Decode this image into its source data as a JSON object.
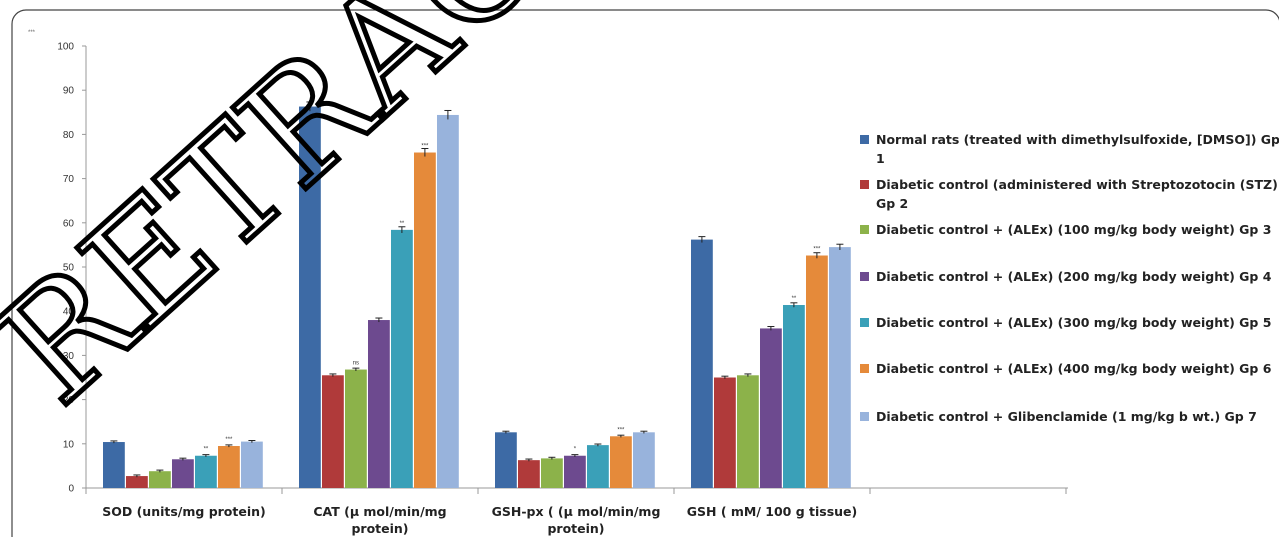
{
  "corner_mark": "***",
  "watermark": "RETRACTED",
  "colors": [
    "#3d6aa5",
    "#b03a3a",
    "#8cb24a",
    "#6d4a8f",
    "#3aa0b8",
    "#e58a3a",
    "#98b3dc"
  ],
  "chart_data": {
    "type": "bar",
    "title": "",
    "xlabel": "",
    "ylabel": "",
    "ylim": [
      0,
      100
    ],
    "yticks": [
      0,
      10,
      20,
      30,
      40,
      50,
      60,
      70,
      80,
      90,
      100
    ],
    "grid": false,
    "legend_position": "right",
    "categories": [
      [
        "SOD (units/mg  protein)"
      ],
      [
        "CAT (µ mol/min/mg",
        "protein)"
      ],
      [
        "GSH-px ( (µ mol/min/mg",
        "protein)"
      ],
      [
        "GSH ( mM/ 100 g tissue)"
      ]
    ],
    "series": [
      {
        "name": [
          "Normal rats (treated with dimethylsulfoxide, [DMSO]) Gp",
          "1"
        ],
        "values": [
          10.4,
          86.3,
          12.6,
          56.2
        ]
      },
      {
        "name": [
          "Diabetic control (administered with Streptozotocin (STZ)",
          "Gp 2"
        ],
        "values": [
          2.7,
          25.5,
          6.3,
          25.0
        ]
      },
      {
        "name": [
          "Diabetic control + (ALEx) (100 mg/kg body weight) Gp 3"
        ],
        "values": [
          3.8,
          26.8,
          6.7,
          25.5
        ]
      },
      {
        "name": [
          "Diabetic control + (ALEx) (200 mg/kg body weight) Gp 4"
        ],
        "values": [
          6.5,
          38.0,
          7.3,
          36.1
        ]
      },
      {
        "name": [
          "Diabetic control + (ALEx) (300 mg/kg body weight) Gp 5"
        ],
        "values": [
          7.3,
          58.4,
          9.7,
          41.4
        ]
      },
      {
        "name": [
          "Diabetic control + (ALEx) (400 mg/kg body weight) Gp 6"
        ],
        "values": [
          9.5,
          75.9,
          11.7,
          52.6
        ]
      },
      {
        "name": [
          "Diabetic control + Glibenclamide  (1 mg/kg b wt.) Gp 7"
        ],
        "values": [
          10.5,
          84.4,
          12.6,
          54.5
        ]
      }
    ],
    "annotations": [
      {
        "category": 0,
        "series": 4,
        "text": "**"
      },
      {
        "category": 0,
        "series": 5,
        "text": "***"
      },
      {
        "category": 1,
        "series": 2,
        "text": "ns"
      },
      {
        "category": 1,
        "series": 4,
        "text": "**"
      },
      {
        "category": 1,
        "series": 5,
        "text": "***"
      },
      {
        "category": 2,
        "series": 3,
        "text": "*"
      },
      {
        "category": 2,
        "series": 5,
        "text": "***"
      },
      {
        "category": 3,
        "series": 4,
        "text": "**"
      },
      {
        "category": 3,
        "series": 5,
        "text": "***"
      }
    ]
  }
}
